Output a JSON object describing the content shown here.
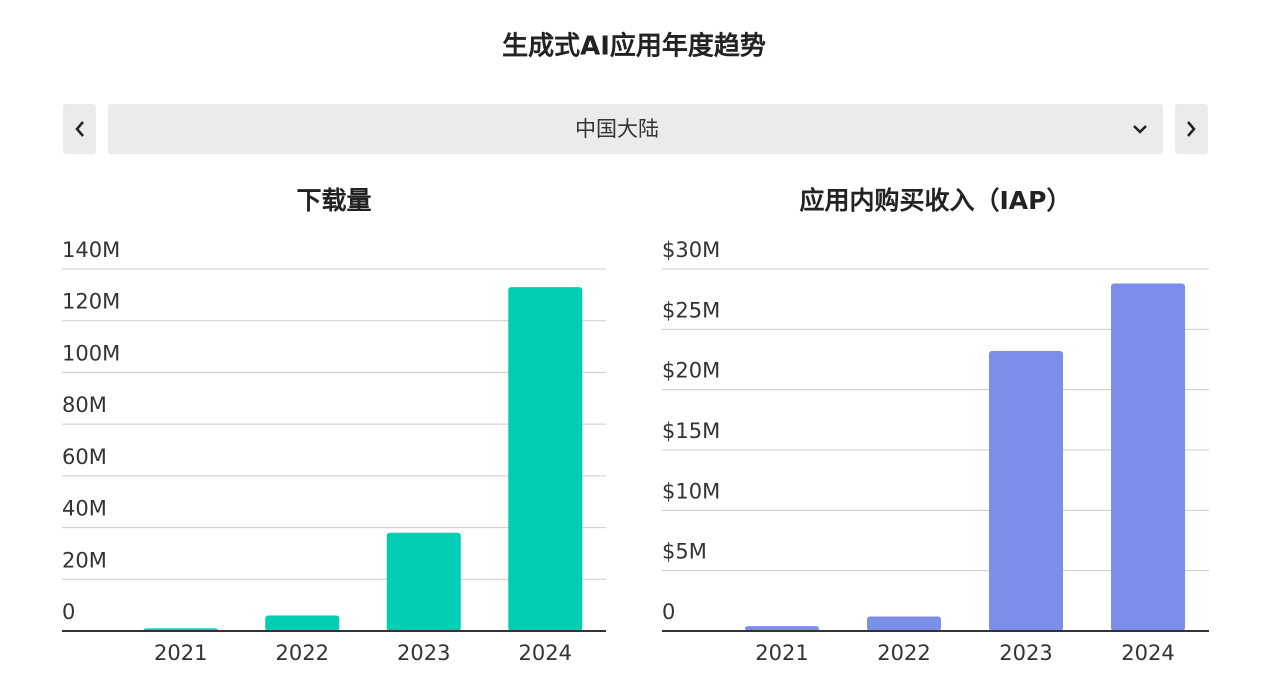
{
  "title": "生成式AI应用年度趋势",
  "region": "中国大陆",
  "chart_data": [
    {
      "type": "bar",
      "title": "下载量",
      "categories": [
        "2021",
        "2022",
        "2023",
        "2024"
      ],
      "values": [
        1,
        6,
        38,
        133
      ],
      "color": "#00cdb4",
      "ylim": [
        0,
        140
      ],
      "yticks": [
        0,
        {
          "value": 20,
          "label": "20M"
        },
        {
          "value": 40,
          "label": "40M"
        },
        {
          "value": 60,
          "label": "60M"
        },
        {
          "value": 80,
          "label": "80M"
        },
        {
          "value": 100,
          "label": "100M"
        },
        {
          "value": 120,
          "label": "120M"
        },
        {
          "value": 140,
          "label": "140M"
        }
      ],
      "grid": true
    },
    {
      "type": "bar",
      "title": "应用内购买收入（IAP）",
      "categories": [
        "2021",
        "2022",
        "2023",
        "2024"
      ],
      "values": [
        0.4,
        1.2,
        23.2,
        28.8
      ],
      "color": "#7b8ee8",
      "ylim": [
        0,
        30
      ],
      "yticks": [
        0,
        {
          "value": 5,
          "label": "$5M"
        },
        {
          "value": 10,
          "label": "$10M"
        },
        {
          "value": 15,
          "label": "$15M"
        },
        {
          "value": 20,
          "label": "$20M"
        },
        {
          "value": 25,
          "label": "$25M"
        },
        {
          "value": 30,
          "label": "$30M"
        }
      ],
      "grid": true
    }
  ]
}
